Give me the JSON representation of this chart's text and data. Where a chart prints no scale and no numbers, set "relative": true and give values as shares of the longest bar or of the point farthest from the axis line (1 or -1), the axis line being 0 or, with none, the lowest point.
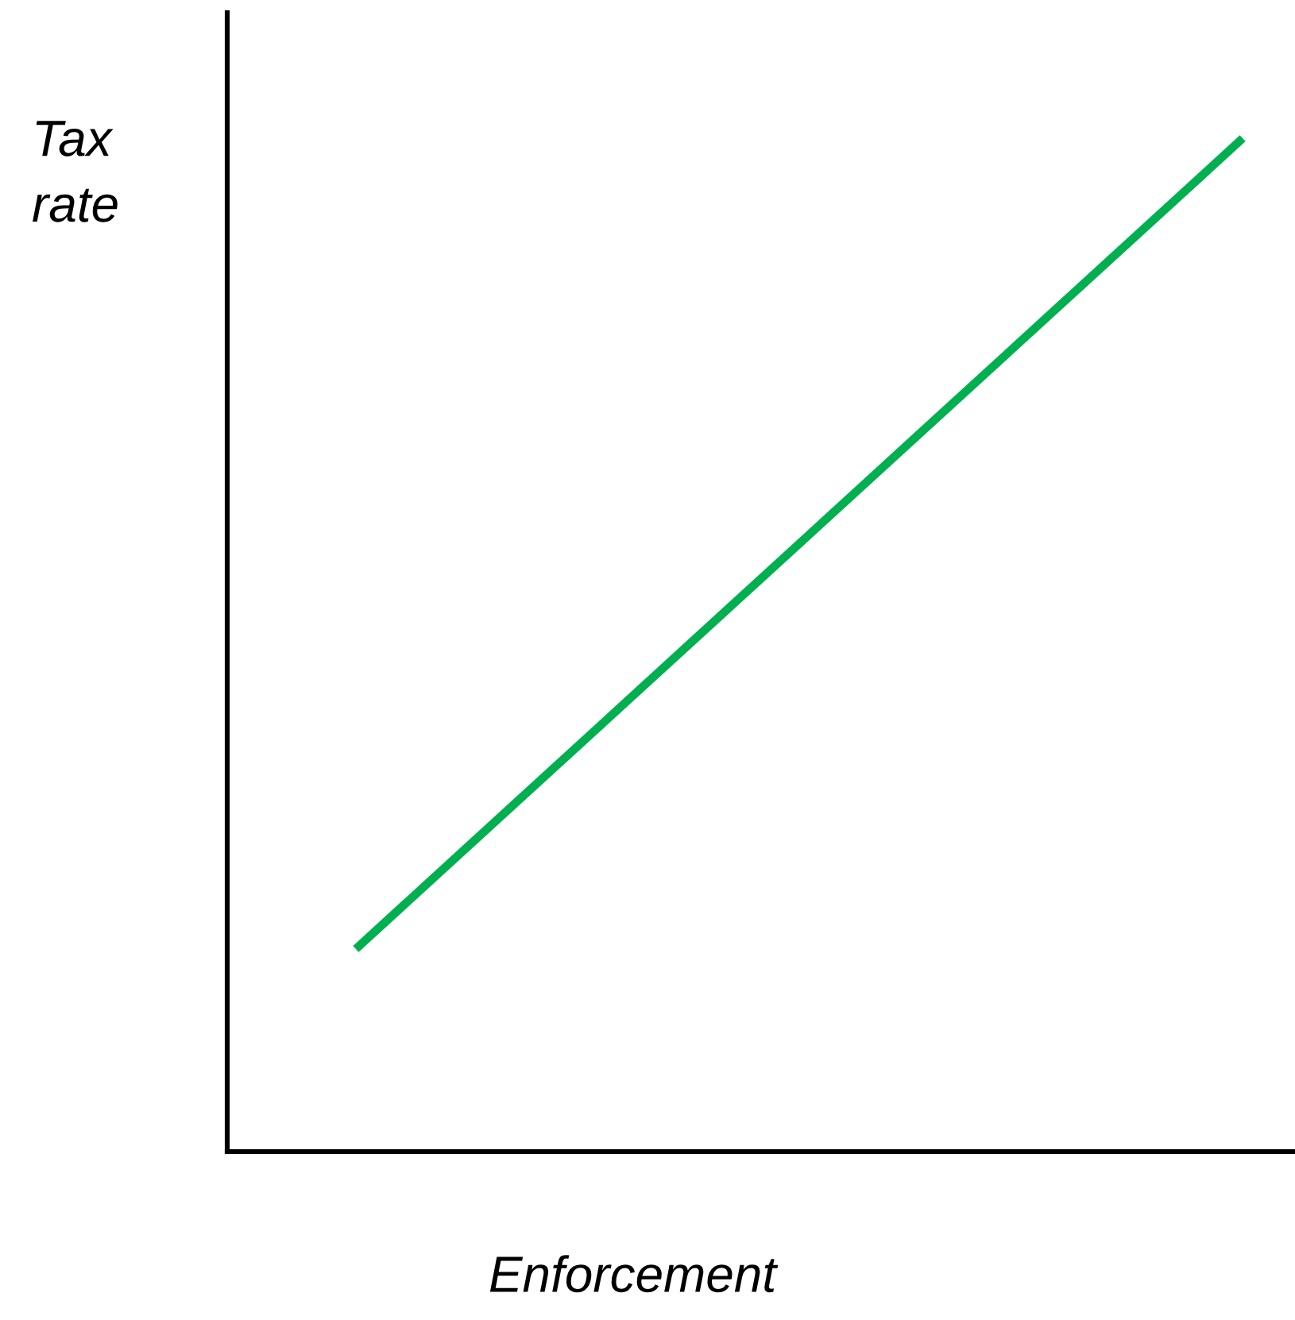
{
  "chart_data": {
    "type": "line",
    "relative": true,
    "xlabel": "Enforcement",
    "ylabel": "Tax\nrate",
    "categories": [
      null,
      null
    ],
    "series": [
      {
        "color": "#00b050",
        "values": [
          0.2,
          1.0
        ]
      }
    ],
    "grid": false,
    "legend": false,
    "marker": "none",
    "line_style": "solid"
  }
}
